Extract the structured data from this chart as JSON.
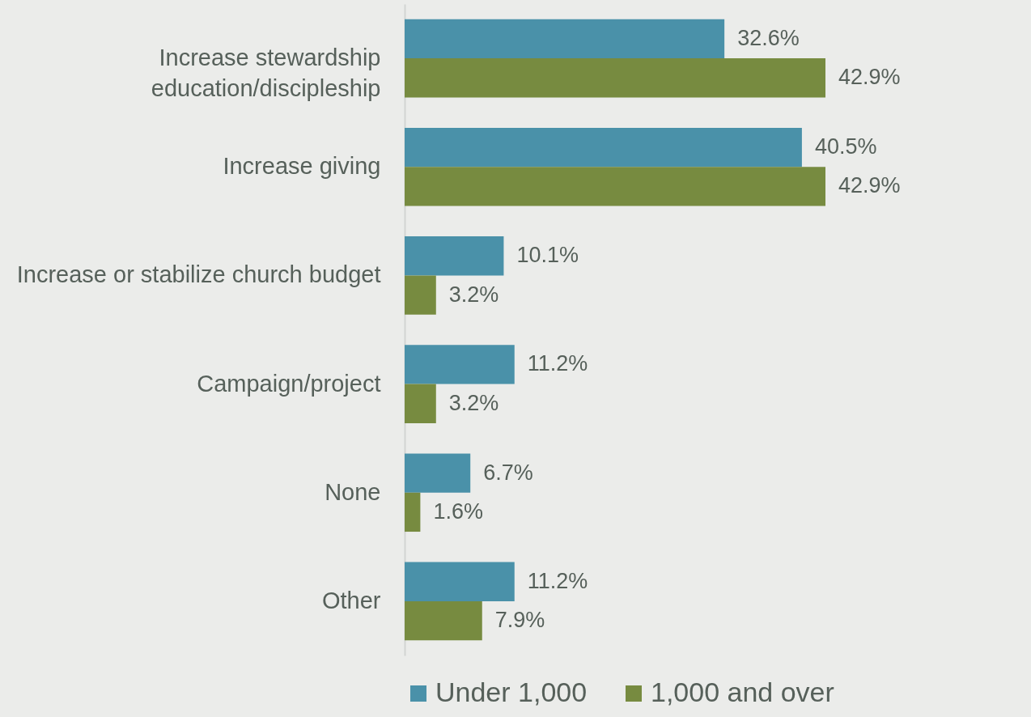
{
  "chart_data": {
    "type": "bar",
    "orientation": "horizontal",
    "categories": [
      "Increase stewardship \neducation/discipleship",
      "Increase giving",
      "Increase or stabilize church budget",
      "Campaign/project",
      "None",
      "Other"
    ],
    "series": [
      {
        "name": "Under 1,000",
        "color": "#4a91a9",
        "values": [
          32.6,
          40.5,
          10.1,
          11.2,
          6.7,
          11.2
        ],
        "value_labels": [
          "32.6%",
          "40.5%",
          "10.1%",
          "11.2%",
          "6.7%",
          "11.2%"
        ]
      },
      {
        "name": "1,000 and over",
        "color": "#778b40",
        "values": [
          42.9,
          42.9,
          3.2,
          3.2,
          1.6,
          7.9
        ],
        "value_labels": [
          "42.9%",
          "42.9%",
          "3.2%",
          "3.2%",
          "1.6%",
          "7.9%"
        ]
      }
    ],
    "legend": "bottom",
    "grid": false
  }
}
